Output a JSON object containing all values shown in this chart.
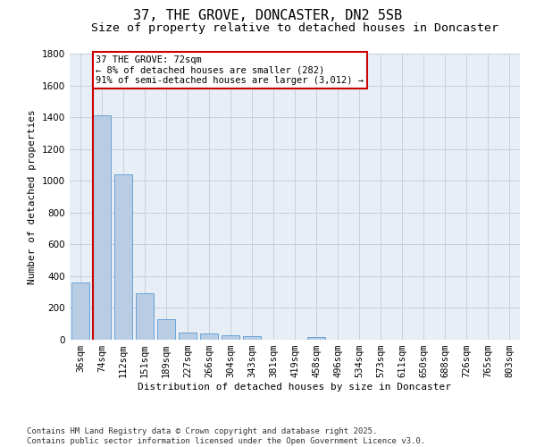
{
  "title": "37, THE GROVE, DONCASTER, DN2 5SB",
  "subtitle": "Size of property relative to detached houses in Doncaster",
  "xlabel": "Distribution of detached houses by size in Doncaster",
  "ylabel": "Number of detached properties",
  "categories": [
    "36sqm",
    "74sqm",
    "112sqm",
    "151sqm",
    "189sqm",
    "227sqm",
    "266sqm",
    "304sqm",
    "343sqm",
    "381sqm",
    "419sqm",
    "458sqm",
    "496sqm",
    "534sqm",
    "573sqm",
    "611sqm",
    "650sqm",
    "688sqm",
    "726sqm",
    "765sqm",
    "803sqm"
  ],
  "values": [
    360,
    1410,
    1040,
    295,
    130,
    45,
    38,
    28,
    20,
    0,
    0,
    16,
    0,
    0,
    0,
    0,
    0,
    0,
    0,
    0,
    0
  ],
  "bar_color": "#b8cce4",
  "bar_edgecolor": "#5b9bd5",
  "vline_x_index": 1,
  "vline_color": "#cc0000",
  "annotation_text": "37 THE GROVE: 72sqm\n← 8% of detached houses are smaller (282)\n91% of semi-detached houses are larger (3,012) →",
  "annotation_box_edgecolor": "#cc0000",
  "ylim": [
    0,
    1800
  ],
  "yticks": [
    0,
    200,
    400,
    600,
    800,
    1000,
    1200,
    1400,
    1600,
    1800
  ],
  "grid_color": "#c8d0dc",
  "background_color": "#e8eef5",
  "footer_text": "Contains HM Land Registry data © Crown copyright and database right 2025.\nContains public sector information licensed under the Open Government Licence v3.0.",
  "title_fontsize": 11,
  "subtitle_fontsize": 9.5,
  "axis_label_fontsize": 8,
  "tick_fontsize": 7.5,
  "annotation_fontsize": 7.5,
  "footer_fontsize": 6.5
}
